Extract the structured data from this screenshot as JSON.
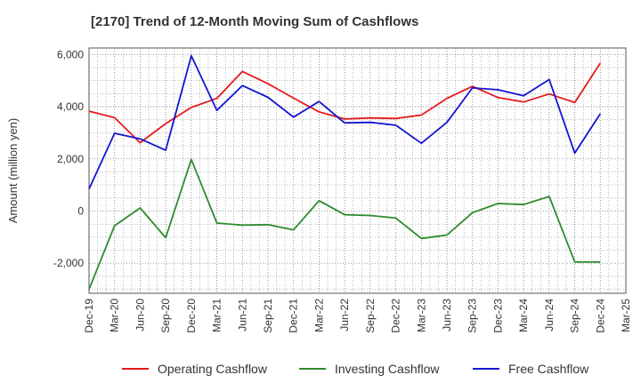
{
  "chart_data": {
    "type": "line",
    "title": "[2170]  Trend of 12-Month Moving Sum of Cashflows",
    "xlabel": "",
    "ylabel": "Amount (million yen)",
    "categories": [
      "Dec-19",
      "Mar-20",
      "Jun-20",
      "Sep-20",
      "Dec-20",
      "Mar-21",
      "Jun-21",
      "Sep-21",
      "Dec-21",
      "Mar-22",
      "Jun-22",
      "Sep-22",
      "Dec-22",
      "Mar-23",
      "Jun-23",
      "Sep-23",
      "Dec-23",
      "Mar-24",
      "Jun-24",
      "Sep-24",
      "Dec-24",
      "Mar-25"
    ],
    "yticks": [
      -2000,
      0,
      2000,
      4000,
      6000
    ],
    "ytick_labels": [
      "-2,000",
      "0",
      "2,000",
      "4,000",
      "6,000"
    ],
    "ylim": [
      -3150,
      6250
    ],
    "grid": true,
    "legend_position": "bottom",
    "series": [
      {
        "name": "Operating Cashflow",
        "color": "#e41a1c",
        "values": [
          3830,
          3580,
          2620,
          3350,
          3970,
          4320,
          5350,
          4880,
          4330,
          3800,
          3530,
          3570,
          3550,
          3680,
          4320,
          4780,
          4350,
          4180,
          4490,
          4160,
          5670,
          null
        ]
      },
      {
        "name": "Investing Cashflow",
        "color": "#2e8b2e",
        "values": [
          -3000,
          -560,
          120,
          -1020,
          1980,
          -460,
          -540,
          -520,
          -720,
          400,
          -140,
          -170,
          -270,
          -1050,
          -920,
          -60,
          290,
          250,
          560,
          -1950,
          -1950,
          null
        ]
      },
      {
        "name": "Free Cashflow",
        "color": "#1414d2",
        "values": [
          850,
          2980,
          2770,
          2330,
          5950,
          3860,
          4810,
          4360,
          3600,
          4200,
          3380,
          3400,
          3290,
          2600,
          3400,
          4720,
          4650,
          4420,
          5040,
          2220,
          3730,
          null
        ]
      }
    ]
  }
}
